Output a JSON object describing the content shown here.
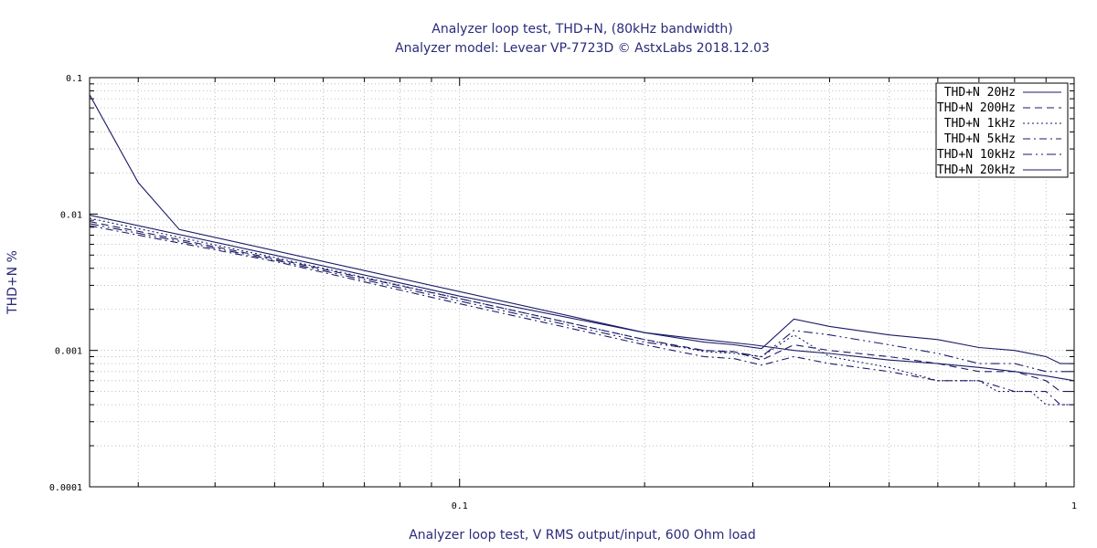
{
  "chart_data": {
    "type": "line",
    "title": "Analyzer loop test, THD+N, (80kHz bandwidth)",
    "subtitle": "Analyzer model: Levear VP-7723D © AstxLabs 2018.12.03",
    "xlabel": "Analyzer loop test, V RMS output/input, 600 Ohm load",
    "ylabel": "THD+N %",
    "x_scale": "log",
    "y_scale": "log",
    "xlim": [
      0.025,
      1
    ],
    "ylim": [
      0.0001,
      0.1
    ],
    "x_ticks": [
      {
        "value": 0.1,
        "label": "0.1"
      },
      {
        "value": 1,
        "label": "1"
      }
    ],
    "y_ticks": [
      {
        "value": 0.1,
        "label": "0.1"
      },
      {
        "value": 0.01,
        "label": "0.01"
      },
      {
        "value": 0.001,
        "label": "0.001"
      },
      {
        "value": 0.0001,
        "label": "0.0001"
      }
    ],
    "grid": true,
    "legend_position": "top-right",
    "color": "#1a1a66",
    "series": [
      {
        "name": "THD+N 20Hz",
        "dash": "",
        "x": [
          0.025,
          0.03,
          0.035,
          0.2,
          0.25,
          0.3,
          0.35,
          0.4,
          0.5,
          0.6,
          0.7,
          0.8,
          0.9,
          1.0
        ],
        "y": [
          0.075,
          0.017,
          0.0077,
          0.00135,
          0.0012,
          0.0011,
          0.001,
          0.00095,
          0.00085,
          0.0008,
          0.00075,
          0.0007,
          0.00065,
          0.0006
        ]
      },
      {
        "name": "THD+N 200Hz",
        "dash": "8,5",
        "x": [
          0.025,
          0.05,
          0.1,
          0.2,
          0.25,
          0.28,
          0.31,
          0.35,
          0.4,
          0.5,
          0.6,
          0.7,
          0.8,
          0.9,
          0.95,
          1.0
        ],
        "y": [
          0.0088,
          0.0047,
          0.0024,
          0.0012,
          0.001,
          0.00098,
          0.00085,
          0.0011,
          0.001,
          0.0009,
          0.0008,
          0.0007,
          0.0007,
          0.0006,
          0.0005,
          0.0005
        ]
      },
      {
        "name": "THD+N 1kHz",
        "dash": "2,3",
        "x": [
          0.025,
          0.05,
          0.1,
          0.2,
          0.25,
          0.28,
          0.31,
          0.35,
          0.4,
          0.5,
          0.6,
          0.7,
          0.75,
          0.85,
          0.9,
          1.0
        ],
        "y": [
          0.0093,
          0.0048,
          0.0024,
          0.0012,
          0.00098,
          0.00095,
          0.0009,
          0.0013,
          0.0009,
          0.00075,
          0.0006,
          0.0006,
          0.0005,
          0.0005,
          0.0004,
          0.0004
        ]
      },
      {
        "name": "THD+N 5kHz",
        "dash": "8,4,2,4",
        "x": [
          0.025,
          0.05,
          0.1,
          0.2,
          0.25,
          0.28,
          0.31,
          0.35,
          0.4,
          0.5,
          0.6,
          0.7,
          0.8,
          0.9,
          0.95,
          1.0
        ],
        "y": [
          0.0082,
          0.0045,
          0.0022,
          0.0011,
          0.0009,
          0.00087,
          0.00078,
          0.0009,
          0.0008,
          0.0007,
          0.0006,
          0.0006,
          0.0005,
          0.0005,
          0.0004,
          0.0004
        ]
      },
      {
        "name": "THD+N 10kHz",
        "dash": "10,4,2,4,2,4",
        "x": [
          0.025,
          0.05,
          0.1,
          0.2,
          0.25,
          0.28,
          0.31,
          0.35,
          0.4,
          0.5,
          0.6,
          0.7,
          0.8,
          0.9,
          0.95,
          1.0
        ],
        "y": [
          0.0085,
          0.0046,
          0.0023,
          0.00115,
          0.001,
          0.00097,
          0.0009,
          0.0014,
          0.0013,
          0.0011,
          0.00095,
          0.0008,
          0.0008,
          0.0007,
          0.0007,
          0.0007
        ]
      },
      {
        "name": "THD+N 20kHz",
        "dash": "",
        "x": [
          0.025,
          0.05,
          0.1,
          0.2,
          0.25,
          0.28,
          0.31,
          0.35,
          0.4,
          0.5,
          0.6,
          0.7,
          0.8,
          0.9,
          0.95,
          1.0
        ],
        "y": [
          0.0098,
          0.005,
          0.0025,
          0.00135,
          0.00115,
          0.0011,
          0.00103,
          0.0017,
          0.0015,
          0.0013,
          0.0012,
          0.00105,
          0.001,
          0.0009,
          0.0008,
          0.0008
        ]
      }
    ]
  }
}
